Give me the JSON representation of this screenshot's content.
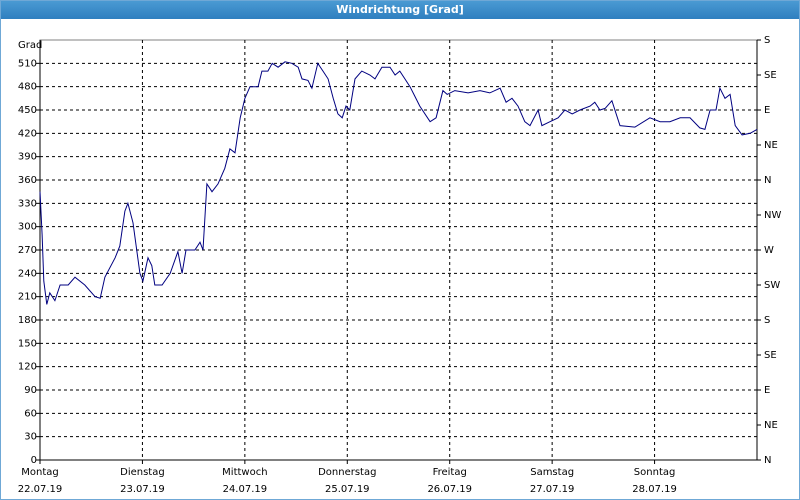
{
  "chart_data": {
    "type": "line",
    "title": "Windrichtung [Grad]",
    "y_label": "Grad",
    "x": [
      0,
      0.5,
      0.9,
      1.6,
      2.3,
      3.5,
      4.7,
      6.6,
      8.2,
      10.5,
      12.9,
      14.1,
      15.2,
      17.6,
      18.7,
      19.9,
      20.6,
      21.8,
      23.4,
      24.1,
      25.3,
      26.2,
      26.9,
      28.6,
      30.5,
      32.3,
      33.3,
      34.2,
      36.3,
      37.5,
      38.2,
      39.1,
      40.3,
      41.7,
      43.3,
      44.5,
      45.7,
      46.9,
      48.0,
      49.2,
      51.1,
      52.0,
      53.4,
      54.4,
      55.8,
      57.4,
      59.0,
      60.5,
      61.4,
      62.8,
      63.7,
      65.1,
      66.3,
      67.5,
      68.7,
      69.8,
      70.8,
      71.7,
      72.6,
      73.8,
      75.4,
      77.3,
      78.5,
      80.1,
      82.0,
      83.2,
      84.3,
      85.5,
      86.7,
      87.6,
      89.0,
      91.4,
      92.8,
      94.4,
      95.4,
      97.2,
      100.3,
      103.1,
      105.4,
      107.8,
      109.2,
      110.6,
      112.0,
      113.6,
      114.8,
      116.7,
      117.6,
      119.5,
      121.4,
      123.0,
      124.7,
      126.5,
      128.9,
      130.0,
      131.2,
      132.4,
      134.0,
      135.9,
      139.4,
      142.9,
      145.3,
      147.6,
      150.0,
      152.3,
      154.6,
      155.8,
      157.0,
      158.4,
      159.3,
      160.5,
      161.7,
      162.9,
      164.5,
      166.4,
      168.0
    ],
    "series": [
      {
        "name": "Windrichtung",
        "color": "#000080",
        "values": [
          345,
          290,
          230,
          200,
          215,
          205,
          225,
          225,
          235,
          225,
          210,
          208,
          235,
          260,
          275,
          320,
          330,
          305,
          240,
          230,
          260,
          250,
          225,
          225,
          240,
          268,
          240,
          270,
          270,
          280,
          270,
          355,
          345,
          355,
          375,
          400,
          395,
          440,
          465,
          480,
          480,
          500,
          500,
          510,
          505,
          512,
          510,
          505,
          490,
          488,
          478,
          510,
          500,
          490,
          465,
          445,
          440,
          455,
          450,
          490,
          500,
          495,
          490,
          505,
          505,
          495,
          500,
          490,
          480,
          470,
          455,
          435,
          440,
          475,
          470,
          475,
          472,
          475,
          472,
          478,
          460,
          465,
          455,
          435,
          430,
          450,
          430,
          435,
          440,
          450,
          445,
          450,
          455,
          460,
          450,
          452,
          462,
          430,
          428,
          440,
          435,
          435,
          440,
          440,
          427,
          425,
          450,
          450,
          478,
          465,
          470,
          430,
          418,
          420,
          425
        ]
      }
    ],
    "xlim": [
      0,
      168
    ],
    "xticks": [
      {
        "value": 0,
        "label": "Montag",
        "sublabel": "22.07.19"
      },
      {
        "value": 24,
        "label": "Dienstag",
        "sublabel": "23.07.19"
      },
      {
        "value": 48,
        "label": "Mittwoch",
        "sublabel": "24.07.19"
      },
      {
        "value": 72,
        "label": "Donnerstag",
        "sublabel": "25.07.19"
      },
      {
        "value": 96,
        "label": "Freitag",
        "sublabel": "26.07.19"
      },
      {
        "value": 120,
        "label": "Samstag",
        "sublabel": "27.07.19"
      },
      {
        "value": 144,
        "label": "Sonntag",
        "sublabel": "28.07.19"
      }
    ],
    "ylim": [
      0,
      540
    ],
    "yticks": [
      0,
      30,
      60,
      90,
      120,
      150,
      180,
      210,
      240,
      270,
      300,
      330,
      360,
      390,
      420,
      450,
      480,
      510
    ],
    "y2lim": [
      0,
      540
    ],
    "y2ticks": [
      {
        "value": 0,
        "label": "N"
      },
      {
        "value": 45,
        "label": "NE"
      },
      {
        "value": 90,
        "label": "E"
      },
      {
        "value": 135,
        "label": "SE"
      },
      {
        "value": 180,
        "label": "S"
      },
      {
        "value": 225,
        "label": "SW"
      },
      {
        "value": 270,
        "label": "W"
      },
      {
        "value": 315,
        "label": "NW"
      },
      {
        "value": 360,
        "label": "N"
      },
      {
        "value": 405,
        "label": "NE"
      },
      {
        "value": 450,
        "label": "E"
      },
      {
        "value": 495,
        "label": "SE"
      },
      {
        "value": 540,
        "label": "S"
      }
    ],
    "grid": true
  }
}
